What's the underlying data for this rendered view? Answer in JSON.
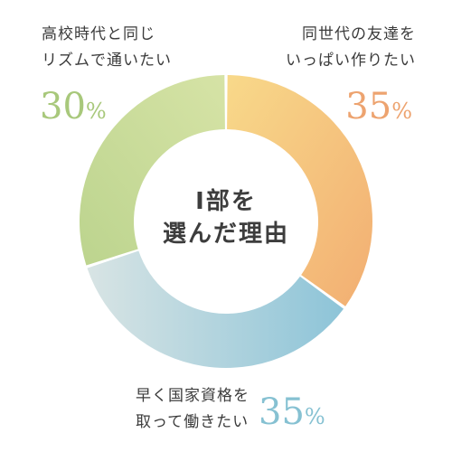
{
  "chart_data": {
    "type": "pie",
    "style": "donut",
    "title": "I部を\n選んだ理由",
    "slices": [
      {
        "label": "同世代の友達を\nいっぱい作りたい",
        "value": 35,
        "value_text": "35",
        "unit": "%",
        "color_start": "#f8d98a",
        "color_end": "#f2ae72",
        "pct_color": "#eda36f"
      },
      {
        "label": "早く国家資格を\n取って働きたい",
        "value": 35,
        "value_text": "35",
        "unit": "%",
        "color_start": "#d8e4e4",
        "color_end": "#8dc4d8",
        "pct_color": "#86c1d2"
      },
      {
        "label": "高校時代と同じ\nリズムで通いたい",
        "value": 30,
        "value_text": "30",
        "unit": "%",
        "color_start": "#bcd48e",
        "color_end": "#d6e3a6",
        "pct_color": "#a8c87b"
      }
    ]
  }
}
